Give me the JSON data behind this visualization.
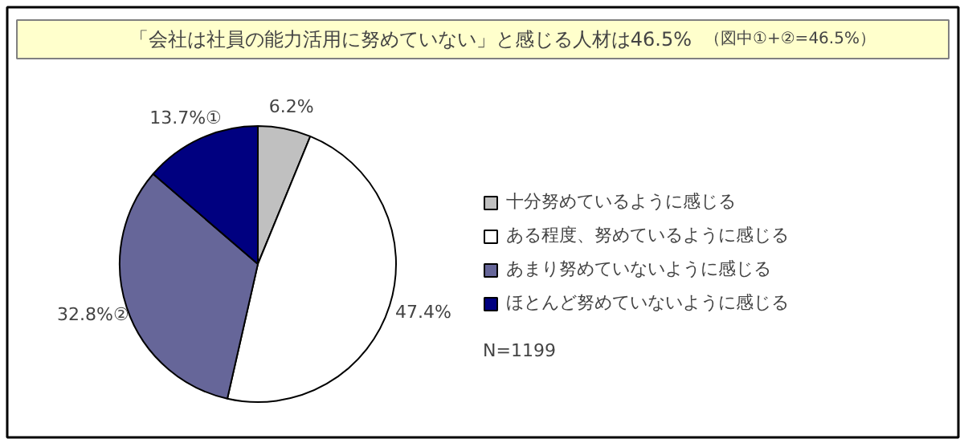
{
  "chart_data": {
    "type": "pie",
    "title": "「会社は社員の能力活用に努めていない」と感じる人材は46.5%",
    "subtitle": "（図中①+②=46.5%）",
    "categories": [
      "十分努めているように感じる",
      "ある程度、努めているように感じる",
      "あまり努めていないように感じる",
      "ほとんど努めていないように感じる"
    ],
    "values": [
      6.2,
      47.4,
      32.8,
      13.7
    ],
    "colors": [
      "#c0c0c0",
      "#ffffff",
      "#666699",
      "#000080"
    ],
    "value_labels": [
      "6.2%",
      "47.4%",
      "32.8%②",
      "13.7%①"
    ],
    "legend": "right",
    "annotations": [
      "N=1199"
    ]
  }
}
